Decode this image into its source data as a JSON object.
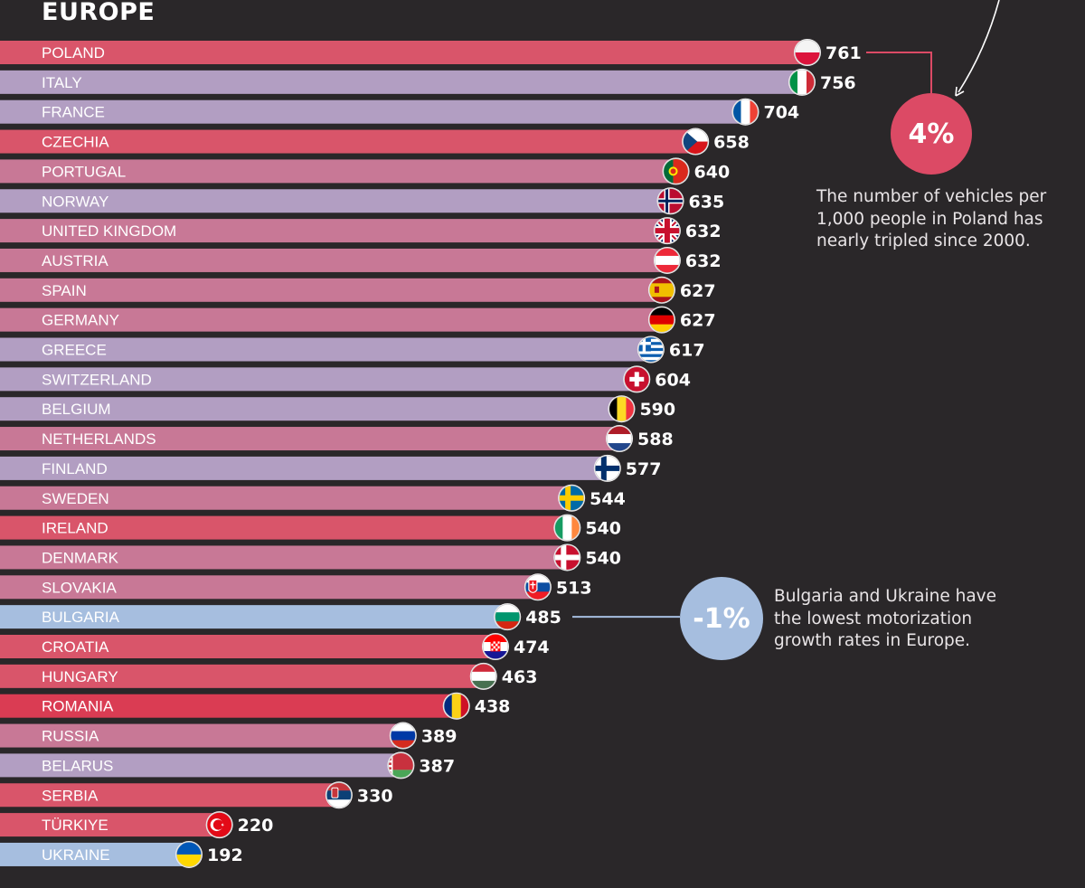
{
  "section_title": "EUROPE",
  "colors": {
    "background": "#2a2729",
    "bar_red": "#d9556a",
    "bar_pink": "#c87896",
    "bar_lavender": "#b29ec2",
    "bar_blue": "#a6bedf",
    "bar_romania": "#da3c53",
    "label": "#ffffff",
    "callout_red": "#dc4a65",
    "callout_blue": "#a6bedf"
  },
  "chart_data": {
    "type": "bar",
    "orientation": "horizontal",
    "title": "EUROPE",
    "xlabel": "",
    "ylabel": "",
    "xlim": [
      0,
      800
    ],
    "categories": [
      "POLAND",
      "ITALY",
      "FRANCE",
      "CZECHIA",
      "PORTUGAL",
      "NORWAY",
      "UNITED KINGDOM",
      "AUSTRIA",
      "SPAIN",
      "GERMANY",
      "GREECE",
      "SWITZERLAND",
      "BELGIUM",
      "NETHERLANDS",
      "FINLAND",
      "SWEDEN",
      "IRELAND",
      "DENMARK",
      "SLOVAKIA",
      "BULGARIA",
      "CROATIA",
      "HUNGARY",
      "ROMANIA",
      "RUSSIA",
      "BELARUS",
      "SERBIA",
      "TÜRKIYE",
      "UKRAINE"
    ],
    "values": [
      761,
      756,
      704,
      658,
      640,
      635,
      632,
      632,
      627,
      627,
      617,
      604,
      590,
      588,
      577,
      544,
      540,
      540,
      513,
      485,
      474,
      463,
      438,
      389,
      387,
      330,
      220,
      192
    ],
    "bar_colors": [
      "red",
      "lavender",
      "lavender",
      "red",
      "pink",
      "lavender",
      "pink",
      "pink",
      "pink",
      "pink",
      "lavender",
      "lavender",
      "lavender",
      "pink",
      "lavender",
      "pink",
      "red",
      "pink",
      "pink",
      "blue",
      "red",
      "red",
      "romania",
      "pink",
      "lavender",
      "red",
      "red",
      "blue"
    ],
    "flags": [
      "poland-flag-icon",
      "italy-flag-icon",
      "france-flag-icon",
      "czechia-flag-icon",
      "portugal-flag-icon",
      "norway-flag-icon",
      "united-kingdom-flag-icon",
      "austria-flag-icon",
      "spain-flag-icon",
      "germany-flag-icon",
      "greece-flag-icon",
      "switzerland-flag-icon",
      "belgium-flag-icon",
      "netherlands-flag-icon",
      "finland-flag-icon",
      "sweden-flag-icon",
      "ireland-flag-icon",
      "denmark-flag-icon",
      "slovakia-flag-icon",
      "bulgaria-flag-icon",
      "croatia-flag-icon",
      "hungary-flag-icon",
      "romania-flag-icon",
      "russia-flag-icon",
      "belarus-flag-icon",
      "serbia-flag-icon",
      "turkiye-flag-icon",
      "ukraine-flag-icon"
    ]
  },
  "callouts": {
    "poland": {
      "percent": "4%",
      "lines": [
        "The number of vehicles per",
        "1,000 people in Poland has",
        "nearly tripled since 2000."
      ]
    },
    "bulgaria_ukraine": {
      "percent": "-1%",
      "lines": [
        "Bulgaria and Ukraine have",
        "the lowest motorization",
        "growth rates in Europe."
      ]
    }
  }
}
